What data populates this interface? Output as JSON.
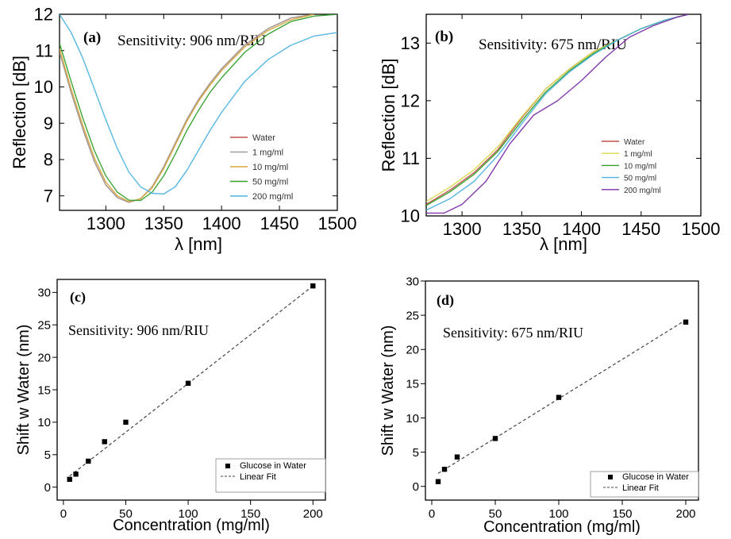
{
  "colors": {
    "water": "#c0504d",
    "c1": "#a0a0a0",
    "c10": "#d8a83c",
    "c50": "#33a02c",
    "c200a": "#4fb3e0",
    "c200b": "#7b2fa8",
    "fit": "#444444",
    "marker": "#000000"
  },
  "chart_data": [
    {
      "panel": "(a)",
      "type": "line",
      "annotation": "Sensitivity: 906 nm/RIU",
      "xlabel": "λ [nm]",
      "ylabel": "Reflection [dB]",
      "xlim": [
        1260,
        1500
      ],
      "ylim": [
        6.6,
        12
      ],
      "xticks": [
        1300,
        1350,
        1400,
        1450,
        1500
      ],
      "yticks": [
        7,
        8,
        9,
        10,
        11,
        12
      ],
      "legend_position": "lower-right",
      "series": [
        {
          "name": "Water",
          "color": "#c0504d",
          "points": [
            [
              1260,
              11.0
            ],
            [
              1270,
              9.85
            ],
            [
              1280,
              8.85
            ],
            [
              1290,
              7.95
            ],
            [
              1300,
              7.3
            ],
            [
              1310,
              6.95
            ],
            [
              1320,
              6.82
            ],
            [
              1330,
              6.92
            ],
            [
              1340,
              7.25
            ],
            [
              1350,
              7.8
            ],
            [
              1360,
              8.45
            ],
            [
              1370,
              9.1
            ],
            [
              1380,
              9.65
            ],
            [
              1390,
              10.1
            ],
            [
              1400,
              10.5
            ],
            [
              1420,
              11.15
            ],
            [
              1440,
              11.6
            ],
            [
              1460,
              11.9
            ],
            [
              1480,
              12.0
            ]
          ]
        },
        {
          "name": "1 mg/ml",
          "color": "#a0a0a0",
          "points": [
            [
              1260,
              10.95
            ],
            [
              1270,
              9.85
            ],
            [
              1280,
              8.85
            ],
            [
              1290,
              7.95
            ],
            [
              1300,
              7.3
            ],
            [
              1310,
              6.95
            ],
            [
              1320,
              6.82
            ],
            [
              1330,
              6.92
            ],
            [
              1340,
              7.25
            ],
            [
              1350,
              7.8
            ],
            [
              1360,
              8.45
            ],
            [
              1370,
              9.1
            ],
            [
              1380,
              9.65
            ],
            [
              1390,
              10.1
            ],
            [
              1400,
              10.5
            ],
            [
              1420,
              11.15
            ],
            [
              1440,
              11.6
            ],
            [
              1460,
              11.9
            ],
            [
              1480,
              12.0
            ]
          ]
        },
        {
          "name": "10 mg/ml",
          "color": "#d8a83c",
          "points": [
            [
              1260,
              11.05
            ],
            [
              1270,
              9.95
            ],
            [
              1280,
              8.95
            ],
            [
              1290,
              8.05
            ],
            [
              1300,
              7.38
            ],
            [
              1310,
              7.0
            ],
            [
              1320,
              6.84
            ],
            [
              1330,
              6.92
            ],
            [
              1340,
              7.22
            ],
            [
              1350,
              7.75
            ],
            [
              1360,
              8.4
            ],
            [
              1370,
              9.05
            ],
            [
              1380,
              9.6
            ],
            [
              1390,
              10.05
            ],
            [
              1400,
              10.45
            ],
            [
              1420,
              11.1
            ],
            [
              1440,
              11.55
            ],
            [
              1460,
              11.85
            ],
            [
              1480,
              12.0
            ]
          ]
        },
        {
          "name": "50 mg/ml",
          "color": "#33a02c",
          "points": [
            [
              1260,
              11.2
            ],
            [
              1270,
              10.15
            ],
            [
              1280,
              9.15
            ],
            [
              1290,
              8.25
            ],
            [
              1300,
              7.55
            ],
            [
              1310,
              7.1
            ],
            [
              1320,
              6.88
            ],
            [
              1330,
              6.87
            ],
            [
              1340,
              7.1
            ],
            [
              1350,
              7.55
            ],
            [
              1360,
              8.15
            ],
            [
              1370,
              8.8
            ],
            [
              1380,
              9.35
            ],
            [
              1390,
              9.85
            ],
            [
              1400,
              10.25
            ],
            [
              1420,
              10.95
            ],
            [
              1440,
              11.45
            ],
            [
              1460,
              11.8
            ],
            [
              1480,
              11.95
            ],
            [
              1500,
              12.0
            ]
          ]
        },
        {
          "name": "200 mg/ml",
          "color": "#4fb3e0",
          "points": [
            [
              1260,
              12.0
            ],
            [
              1270,
              11.5
            ],
            [
              1280,
              10.8
            ],
            [
              1290,
              9.95
            ],
            [
              1300,
              9.1
            ],
            [
              1310,
              8.3
            ],
            [
              1320,
              7.65
            ],
            [
              1330,
              7.25
            ],
            [
              1340,
              7.07
            ],
            [
              1350,
              7.05
            ],
            [
              1360,
              7.25
            ],
            [
              1370,
              7.7
            ],
            [
              1380,
              8.25
            ],
            [
              1390,
              8.8
            ],
            [
              1400,
              9.3
            ],
            [
              1420,
              10.15
            ],
            [
              1440,
              10.75
            ],
            [
              1460,
              11.15
            ],
            [
              1480,
              11.4
            ],
            [
              1500,
              11.5
            ]
          ]
        }
      ]
    },
    {
      "panel": "(b)",
      "type": "line",
      "annotation": "Sensitivity: 675 nm/RIU",
      "xlabel": "λ [nm]",
      "ylabel": "Reflection [dB]",
      "xlim": [
        1270,
        1500
      ],
      "ylim": [
        10,
        13.5
      ],
      "xticks": [
        1300,
        1350,
        1400,
        1450,
        1500
      ],
      "yticks": [
        10,
        11,
        12,
        13
      ],
      "legend_position": "lower-right",
      "series": [
        {
          "name": "Water",
          "color": "#c0504d",
          "points": [
            [
              1270,
              10.2
            ],
            [
              1290,
              10.45
            ],
            [
              1310,
              10.75
            ],
            [
              1330,
              11.15
            ],
            [
              1350,
              11.7
            ],
            [
              1370,
              12.2
            ],
            [
              1390,
              12.55
            ],
            [
              1410,
              12.85
            ],
            [
              1430,
              13.05
            ],
            [
              1450,
              13.25
            ],
            [
              1470,
              13.4
            ],
            [
              1490,
              13.5
            ]
          ]
        },
        {
          "name": "1 mg/ml",
          "color": "#d8d84a",
          "points": [
            [
              1270,
              10.25
            ],
            [
              1290,
              10.5
            ],
            [
              1310,
              10.8
            ],
            [
              1330,
              11.2
            ],
            [
              1350,
              11.72
            ],
            [
              1370,
              12.2
            ],
            [
              1390,
              12.55
            ],
            [
              1410,
              12.85
            ],
            [
              1430,
              13.05
            ],
            [
              1450,
              13.25
            ],
            [
              1470,
              13.4
            ],
            [
              1490,
              13.5
            ]
          ]
        },
        {
          "name": "10 mg/ml",
          "color": "#33a02c",
          "points": [
            [
              1270,
              10.18
            ],
            [
              1290,
              10.42
            ],
            [
              1310,
              10.72
            ],
            [
              1330,
              11.12
            ],
            [
              1350,
              11.65
            ],
            [
              1370,
              12.15
            ],
            [
              1390,
              12.52
            ],
            [
              1410,
              12.82
            ],
            [
              1430,
              13.05
            ],
            [
              1450,
              13.25
            ],
            [
              1470,
              13.4
            ],
            [
              1490,
              13.5
            ]
          ]
        },
        {
          "name": "50 mg/ml",
          "color": "#4fb3e0",
          "points": [
            [
              1270,
              10.1
            ],
            [
              1290,
              10.3
            ],
            [
              1310,
              10.6
            ],
            [
              1330,
              11.05
            ],
            [
              1350,
              11.6
            ],
            [
              1370,
              12.12
            ],
            [
              1390,
              12.5
            ],
            [
              1410,
              12.8
            ],
            [
              1430,
              13.05
            ],
            [
              1450,
              13.25
            ],
            [
              1470,
              13.4
            ],
            [
              1490,
              13.5
            ]
          ]
        },
        {
          "name": "200 mg/ml",
          "color": "#7b2fa8",
          "points": [
            [
              1270,
              10.05
            ],
            [
              1285,
              10.05
            ],
            [
              1300,
              10.2
            ],
            [
              1320,
              10.6
            ],
            [
              1340,
              11.25
            ],
            [
              1360,
              11.75
            ],
            [
              1380,
              12.0
            ],
            [
              1400,
              12.35
            ],
            [
              1420,
              12.75
            ],
            [
              1440,
              13.1
            ],
            [
              1460,
              13.3
            ],
            [
              1480,
              13.45
            ],
            [
              1490,
              13.5
            ]
          ]
        }
      ]
    },
    {
      "panel": "(c)",
      "type": "scatter",
      "annotation": "Sensitivity: 906 nm/RIU",
      "xlabel": "Concentration (mg/ml)",
      "ylabel": "Shift w Water (nm)",
      "xlim": [
        -5,
        210
      ],
      "ylim": [
        -2,
        32
      ],
      "xticks": [
        0,
        50,
        100,
        150,
        200
      ],
      "yticks": [
        0,
        5,
        10,
        15,
        20,
        25,
        30
      ],
      "legend_position": "lower-right",
      "series": [
        {
          "name": "Glucose in Water",
          "x": [
            5,
            10,
            20,
            33,
            50,
            100,
            200
          ],
          "y": [
            1.2,
            2.0,
            4.0,
            7.0,
            10.0,
            16.0,
            31.0
          ]
        },
        {
          "name": "Linear Fit",
          "x": [
            5,
            200
          ],
          "y": [
            1.7,
            31.0
          ]
        }
      ]
    },
    {
      "panel": "(d)",
      "type": "scatter",
      "annotation": "Sensitivity: 675 nm/RIU",
      "xlabel": "Concentration (mg/ml)",
      "ylabel": "Shift w Water (nm)",
      "xlim": [
        -5,
        210
      ],
      "ylim": [
        -2,
        30
      ],
      "xticks": [
        0,
        50,
        100,
        150,
        200
      ],
      "yticks": [
        0,
        5,
        10,
        15,
        20,
        25,
        30
      ],
      "legend_position": "lower-right",
      "series": [
        {
          "name": "Glucose in Water",
          "x": [
            5,
            10,
            20,
            50,
            100,
            200
          ],
          "y": [
            0.7,
            2.5,
            4.3,
            7.0,
            13.0,
            24.0
          ]
        },
        {
          "name": "Linear Fit",
          "x": [
            5,
            200
          ],
          "y": [
            1.9,
            24.3
          ]
        }
      ]
    }
  ]
}
